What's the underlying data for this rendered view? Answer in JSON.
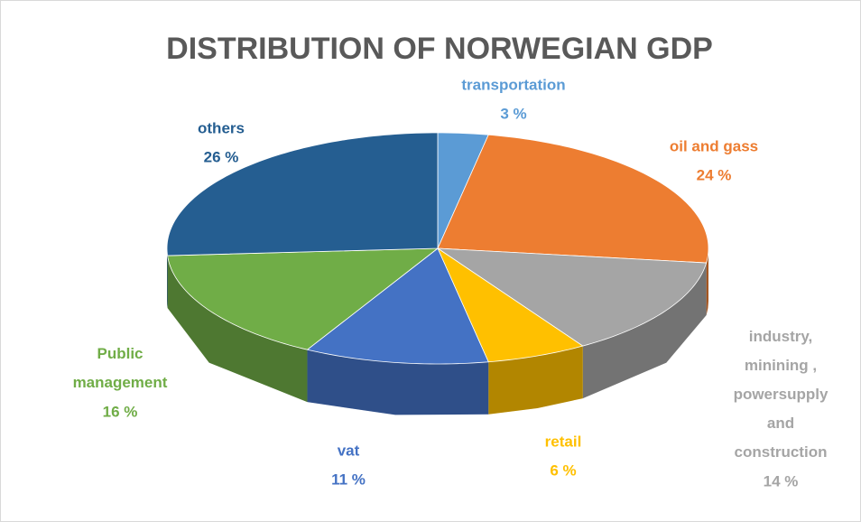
{
  "chart_data": {
    "type": "pie",
    "title": "DISTRIBUTION OF NORWEGIAN GDP",
    "categories": [
      "transportation",
      "oil and gass",
      "industry, minining , powersupply and construction",
      "retail",
      "vat",
      "Public management",
      "others"
    ],
    "values": [
      3,
      24,
      14,
      6,
      11,
      16,
      26
    ],
    "value_labels": [
      "3 %",
      "24 %",
      "14 %",
      "6 %",
      "11 %",
      "16 %",
      "26 %"
    ],
    "colors": [
      "#5b9bd5",
      "#ed7d31",
      "#a5a5a5",
      "#ffc000",
      "#4472c4",
      "#70ad47",
      "#255e91"
    ]
  }
}
